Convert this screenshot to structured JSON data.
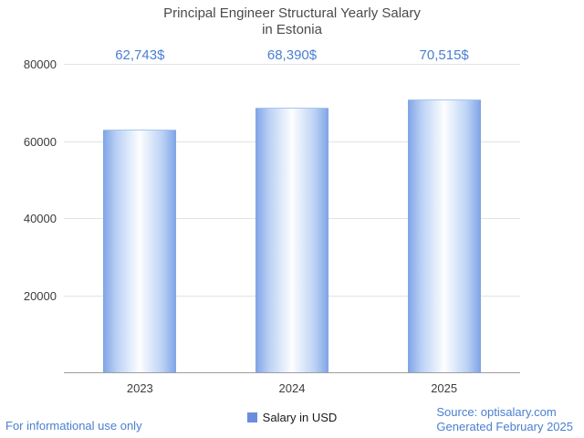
{
  "title": {
    "line1": "Principal Engineer Structural Yearly Salary",
    "line2": "in Estonia"
  },
  "chart_data": {
    "type": "bar",
    "title": "Principal Engineer Structural Yearly Salary in Estonia",
    "categories": [
      "2023",
      "2024",
      "2025"
    ],
    "series": [
      {
        "name": "Salary in USD",
        "values": [
          62743,
          68390,
          70515
        ]
      }
    ],
    "value_labels": [
      "62,743$",
      "68,390$",
      "70,515$"
    ],
    "ylim": [
      0,
      80000
    ],
    "yticks": [
      20000,
      40000,
      60000,
      80000
    ],
    "grid": true,
    "legend_position": "bottom",
    "xlabel": "",
    "ylabel": ""
  },
  "legend": {
    "label": "Salary in USD"
  },
  "footer": {
    "left": "For informational use only",
    "source": "Source: optisalary.com",
    "generated": "Generated February 2025"
  },
  "colors": {
    "accent_blue": "#4a7fd0",
    "bar_edge": "#7fa3e6",
    "bar_center": "#fdfeff",
    "legend_swatch": "#6a8edb",
    "gridline": "#e3e3e3",
    "axis_line": "#9e9e9e",
    "title_text": "#4a4a4a",
    "tick_text": "#3c3c3c"
  }
}
